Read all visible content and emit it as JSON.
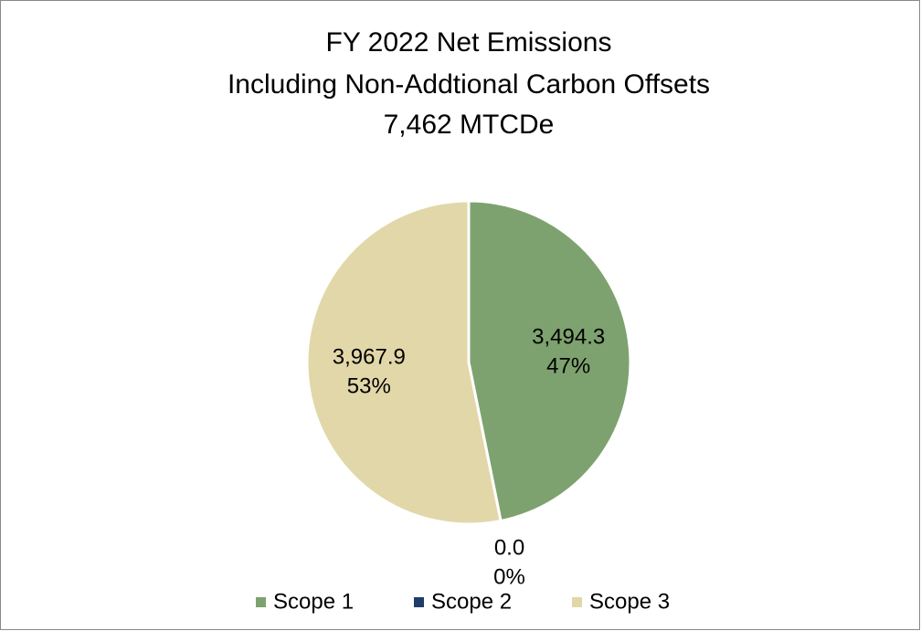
{
  "chart_data": {
    "type": "pie",
    "title": [
      "FY 2022 Net Emissions",
      "Including Non-Addtional Carbon Offsets",
      "7,462 MTCDe"
    ],
    "categories": [
      "Scope 1",
      "Scope 2",
      "Scope 3"
    ],
    "values": [
      3494.3,
      0.0,
      3967.9
    ],
    "value_labels": [
      "3,494.3",
      "0.0",
      "3,967.9"
    ],
    "percent_labels": [
      "47%",
      "0%",
      "53%"
    ],
    "colors": [
      "#7ea26f",
      "#1f3d6b",
      "#e2d7a9"
    ],
    "legend": "bottom"
  }
}
